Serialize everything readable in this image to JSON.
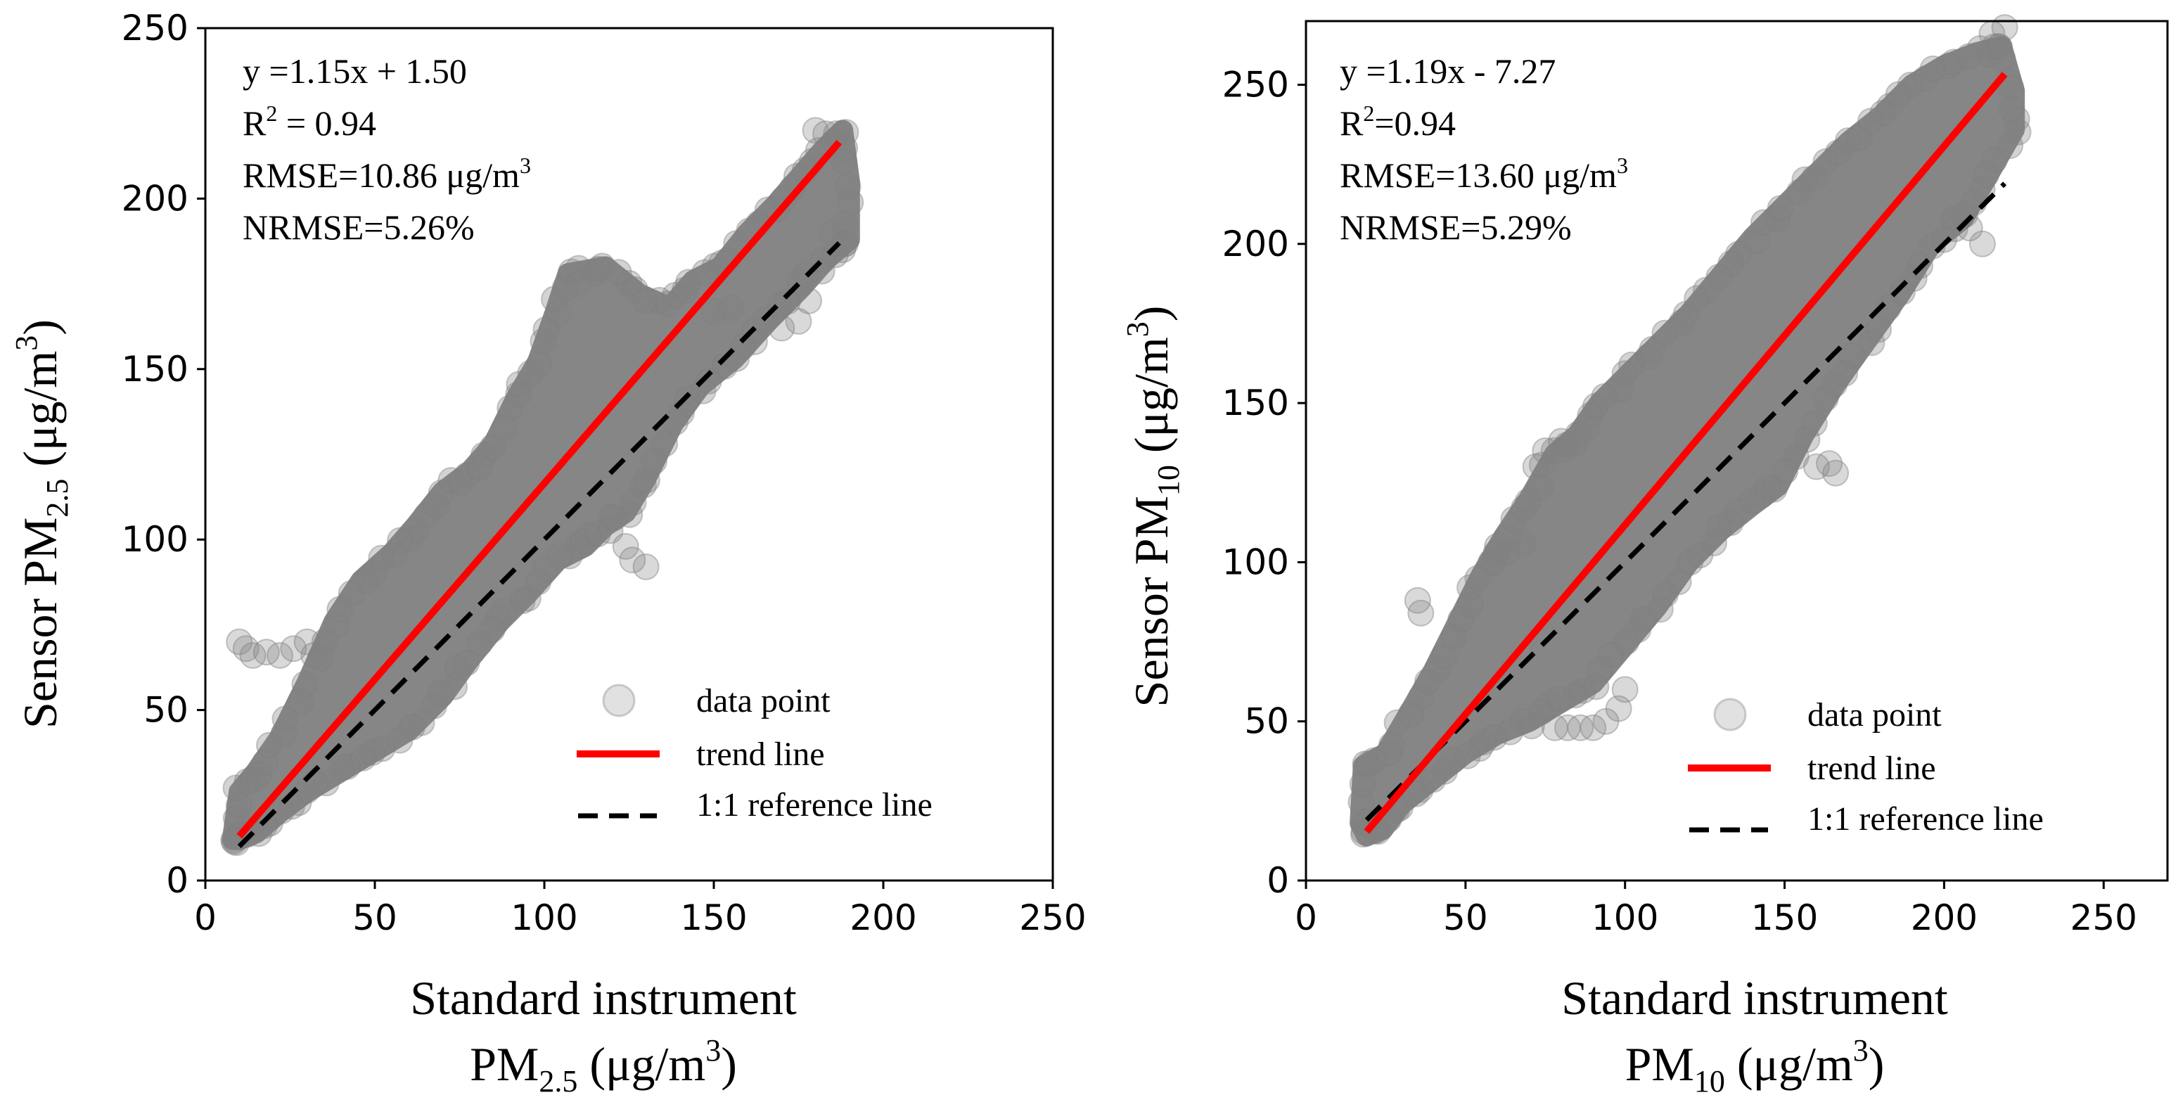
{
  "chart_data": [
    {
      "type": "scatter",
      "id": "pm25",
      "title": "",
      "xlabel": {
        "line1": "Standard instrument",
        "line2_main": "PM",
        "line2_sub": "2.5",
        "line2_unit": " (μg/m",
        "line2_sup": "3",
        "line2_end": ")"
      },
      "ylabel": {
        "main": "Sensor PM",
        "sub": "2.5",
        "unit": " (μg/m",
        "sup": "3",
        "end": ")"
      },
      "xlim": [
        0,
        250
      ],
      "ylim": [
        0,
        250
      ],
      "xticks": [
        0,
        50,
        100,
        150,
        200,
        250
      ],
      "yticks": [
        0,
        50,
        100,
        150,
        200,
        250
      ],
      "annotations": {
        "equation": "y =1.15x + 1.50",
        "r2_label": "R",
        "r2_sup": "2",
        "r2_value": " = 0.94",
        "rmse_label": "RMSE=10.86 μg/m",
        "rmse_sup": "3",
        "nrmse": "NRMSE=5.26%"
      },
      "trend_line": {
        "slope": 1.15,
        "intercept": 1.5,
        "x_range": [
          10,
          187
        ]
      },
      "reference_line": {
        "slope": 1,
        "intercept": 0,
        "x_range": [
          10,
          187
        ]
      },
      "scatter_outline": [
        [
          8,
          12
        ],
        [
          10,
          26
        ],
        [
          15,
          32
        ],
        [
          22,
          42
        ],
        [
          30,
          58
        ],
        [
          38,
          76
        ],
        [
          46,
          88
        ],
        [
          55,
          96
        ],
        [
          62,
          104
        ],
        [
          70,
          114
        ],
        [
          78,
          120
        ],
        [
          85,
          128
        ],
        [
          92,
          142
        ],
        [
          98,
          152
        ],
        [
          103,
          166
        ],
        [
          107,
          178
        ],
        [
          118,
          180
        ],
        [
          128,
          172
        ],
        [
          137,
          168
        ],
        [
          144,
          176
        ],
        [
          152,
          180
        ],
        [
          160,
          190
        ],
        [
          168,
          198
        ],
        [
          175,
          206
        ],
        [
          182,
          214
        ],
        [
          188,
          220
        ],
        [
          190,
          205
        ],
        [
          190,
          188
        ],
        [
          183,
          182
        ],
        [
          176,
          174
        ],
        [
          166,
          164
        ],
        [
          156,
          153
        ],
        [
          146,
          145
        ],
        [
          138,
          134
        ],
        [
          130,
          118
        ],
        [
          124,
          108
        ],
        [
          118,
          104
        ],
        [
          112,
          98
        ],
        [
          104,
          94
        ],
        [
          95,
          84
        ],
        [
          87,
          76
        ],
        [
          78,
          65
        ],
        [
          70,
          54
        ],
        [
          60,
          44
        ],
        [
          50,
          38
        ],
        [
          40,
          32
        ],
        [
          30,
          26
        ],
        [
          22,
          20
        ],
        [
          15,
          14
        ],
        [
          10,
          12
        ]
      ],
      "outlier_points": [
        [
          10,
          70
        ],
        [
          12,
          68
        ],
        [
          14,
          66
        ],
        [
          18,
          67
        ],
        [
          22,
          66
        ],
        [
          26,
          68
        ],
        [
          30,
          70
        ],
        [
          32,
          66
        ],
        [
          110,
          175
        ],
        [
          115,
          178
        ],
        [
          150,
          167
        ],
        [
          155,
          168
        ],
        [
          162,
          158
        ],
        [
          170,
          162
        ],
        [
          175,
          164
        ],
        [
          178,
          170
        ],
        [
          185,
          190
        ],
        [
          188,
          185
        ],
        [
          124,
          98
        ],
        [
          126,
          94
        ],
        [
          130,
          92
        ],
        [
          180,
          220
        ],
        [
          183,
          219
        ]
      ],
      "legend": {
        "position": "lower-right",
        "items": [
          "data point",
          "trend line",
          "1:1 reference line"
        ]
      },
      "colors": {
        "points": "#808080",
        "trend": "#ff0000",
        "reference": "#000000"
      }
    },
    {
      "type": "scatter",
      "id": "pm10",
      "title": "",
      "xlabel": {
        "line1": "Standard instrument",
        "line2_main": "PM",
        "line2_sub": "10",
        "line2_unit": " (μg/m",
        "line2_sup": "3",
        "line2_end": ")"
      },
      "ylabel": {
        "main": "Sensor PM",
        "sub": "10",
        "unit": " (μg/m",
        "sup": "3",
        "end": ")"
      },
      "xlim": [
        0,
        270
      ],
      "ylim": [
        0,
        270
      ],
      "xticks": [
        0,
        50,
        100,
        150,
        200,
        250
      ],
      "yticks": [
        0,
        50,
        100,
        150,
        200,
        250
      ],
      "annotations": {
        "equation": "y =1.19x - 7.27",
        "r2_label": "R",
        "r2_sup": "2",
        "r2_value": "=0.94",
        "rmse_label": "RMSE=13.60 μg/m",
        "rmse_sup": "3",
        "nrmse": "NRMSE=5.29%"
      },
      "trend_line": {
        "slope": 1.19,
        "intercept": -7.27,
        "x_range": [
          19,
          219
        ]
      },
      "reference_line": {
        "slope": 1,
        "intercept": 0,
        "x_range": [
          19,
          219
        ]
      },
      "scatter_outline": [
        [
          17,
          18
        ],
        [
          18,
          36
        ],
        [
          25,
          40
        ],
        [
          32,
          52
        ],
        [
          40,
          66
        ],
        [
          48,
          82
        ],
        [
          55,
          96
        ],
        [
          62,
          108
        ],
        [
          70,
          120
        ],
        [
          78,
          134
        ],
        [
          85,
          140
        ],
        [
          92,
          150
        ],
        [
          100,
          158
        ],
        [
          110,
          168
        ],
        [
          120,
          178
        ],
        [
          130,
          190
        ],
        [
          140,
          202
        ],
        [
          150,
          212
        ],
        [
          160,
          222
        ],
        [
          170,
          232
        ],
        [
          180,
          240
        ],
        [
          190,
          250
        ],
        [
          200,
          256
        ],
        [
          210,
          260
        ],
        [
          218,
          262
        ],
        [
          222,
          248
        ],
        [
          222,
          236
        ],
        [
          214,
          222
        ],
        [
          206,
          208
        ],
        [
          196,
          200
        ],
        [
          186,
          184
        ],
        [
          176,
          170
        ],
        [
          166,
          156
        ],
        [
          156,
          140
        ],
        [
          148,
          124
        ],
        [
          140,
          118
        ],
        [
          130,
          110
        ],
        [
          120,
          100
        ],
        [
          110,
          86
        ],
        [
          100,
          74
        ],
        [
          90,
          62
        ],
        [
          80,
          56
        ],
        [
          70,
          50
        ],
        [
          60,
          46
        ],
        [
          50,
          40
        ],
        [
          40,
          32
        ],
        [
          30,
          24
        ],
        [
          24,
          16
        ],
        [
          19,
          14
        ]
      ],
      "outlier_points": [
        [
          35,
          88
        ],
        [
          36,
          84
        ],
        [
          58,
          100
        ],
        [
          60,
          105
        ],
        [
          63,
          103
        ],
        [
          68,
          106
        ],
        [
          72,
          130
        ],
        [
          75,
          135
        ],
        [
          80,
          138
        ],
        [
          84,
          137
        ],
        [
          78,
          48
        ],
        [
          82,
          48
        ],
        [
          86,
          48
        ],
        [
          90,
          48
        ],
        [
          94,
          50
        ],
        [
          98,
          54
        ],
        [
          100,
          60
        ],
        [
          160,
          130
        ],
        [
          164,
          131
        ],
        [
          166,
          128
        ],
        [
          212,
          200
        ],
        [
          208,
          205
        ],
        [
          203,
          208
        ],
        [
          215,
          266
        ],
        [
          217,
          262
        ],
        [
          219,
          268
        ]
      ],
      "legend": {
        "position": "lower-right",
        "items": [
          "data point",
          "trend line",
          "1:1 reference line"
        ]
      },
      "colors": {
        "points": "#808080",
        "trend": "#ff0000",
        "reference": "#000000"
      }
    }
  ]
}
